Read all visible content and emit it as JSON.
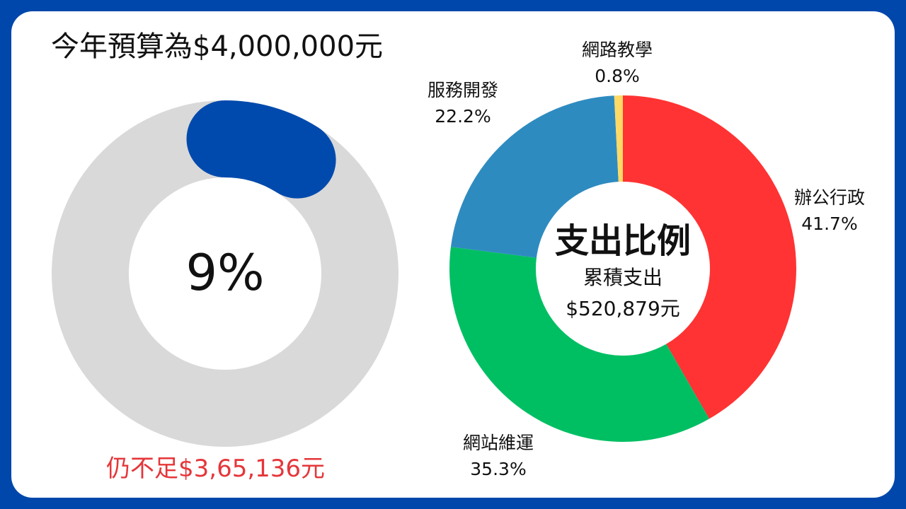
{
  "budget_title": "今年預算為$4,000,000元",
  "shortfall_text": "仍不足$3,65,136元",
  "chart_data": [
    {
      "type": "donut",
      "name": "budget-progress",
      "center_label": "9%",
      "value_percent": 9,
      "colors": {
        "track": "#D9D9D9",
        "progress": "#004AAD"
      }
    },
    {
      "type": "pie",
      "name": "expense-ratio",
      "title": "支出比例",
      "subtitle": "累積支出",
      "total": "$520,879元",
      "slices": [
        {
          "label": "辦公行政",
          "value": 41.7,
          "value_label": "41.7%",
          "color": "#FF3333"
        },
        {
          "label": "網站維運",
          "value": 35.3,
          "value_label": "35.3%",
          "color": "#00BF63"
        },
        {
          "label": "服務開發",
          "value": 22.2,
          "value_label": "22.2%",
          "color": "#2E8BC0"
        },
        {
          "label": "網路教學",
          "value": 0.8,
          "value_label": "0.8%",
          "color": "#FFD966"
        }
      ]
    }
  ]
}
